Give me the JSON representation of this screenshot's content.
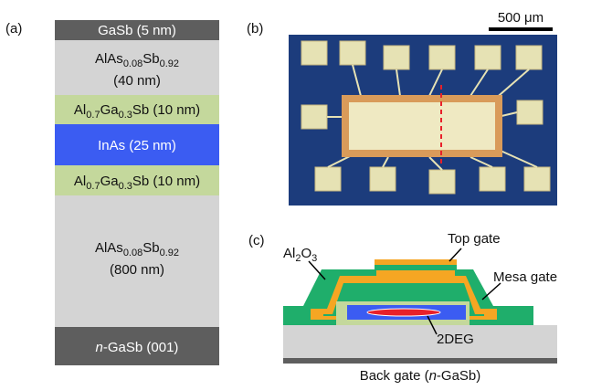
{
  "panel_labels": [
    "(a)",
    "(b)",
    "(c)"
  ],
  "layer_stack": [
    {
      "parts": [
        "GaSb (5 nm)"
      ]
    },
    {
      "parts": [
        "AlAs",
        "0.08",
        "Sb",
        "0.92"
      ],
      "thickness": "(40 nm)"
    },
    {
      "parts": [
        "Al",
        "0.7",
        "Ga",
        "0.3",
        "Sb (10 nm)"
      ]
    },
    {
      "parts": [
        "InAs (25 nm)"
      ]
    },
    {
      "parts": [
        "Al",
        "0.7",
        "Ga",
        "0.3",
        "Sb (10 nm)"
      ]
    },
    {
      "parts": [
        "AlAs",
        "0.08",
        "Sb",
        "0.92"
      ],
      "thickness": "(800 nm)"
    },
    {
      "parts": [
        "n",
        "-GaSb (001)"
      ]
    }
  ],
  "scale_bar": "500 μm",
  "device_labels": {
    "top_gate": "Top gate",
    "oxide": [
      "Al",
      "2",
      "O",
      "3"
    ],
    "mesa_gate": "Mesa gate",
    "channel": "2DEG",
    "back_gate": [
      "Back gate (",
      "n",
      "-GaSb)"
    ]
  }
}
